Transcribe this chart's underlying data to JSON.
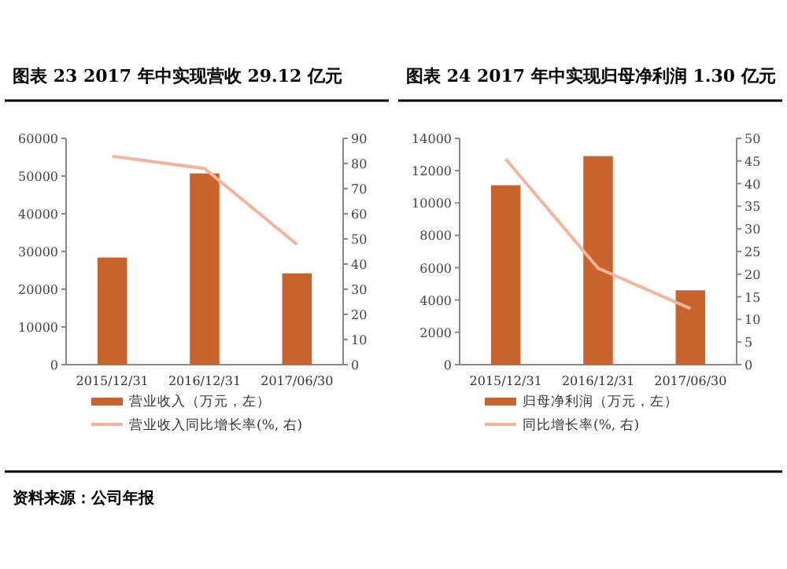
{
  "chart_data": [
    {
      "type": "bar",
      "title": "图表 23   2017 年中实现营收 29.12 亿元",
      "categories": [
        "2015/12/31",
        "2016/12/31",
        "2017/06/30"
      ],
      "series": [
        {
          "name": "营业收入（万元，左）",
          "color": "#c8642b",
          "values": [
            28400,
            50700,
            24200
          ]
        },
        {
          "name": "营业收入同比增长率(%, 右)",
          "type": "line",
          "axis": "y2",
          "color": "#f4b49c",
          "values": [
            82.9,
            78,
            47.8
          ]
        }
      ],
      "ylim": [
        0,
        60000
      ],
      "yticks": [
        0,
        10000,
        20000,
        30000,
        40000,
        50000,
        60000
      ],
      "y2lim": [
        0,
        90
      ],
      "y2ticks": [
        0,
        10,
        20,
        30,
        40,
        50,
        60,
        70,
        80,
        90
      ],
      "legend": "bottom",
      "annotations": [
        "资料来源：公司年报"
      ]
    },
    {
      "type": "bar",
      "title": "图表 24   2017 年中实现归母净利润 1.30 亿元",
      "categories": [
        "2015/12/31",
        "2016/12/31",
        "2017/06/30"
      ],
      "series": [
        {
          "name": "归母净利润（万元，左）",
          "color": "#c8642b",
          "values": [
            11100,
            12900,
            4600
          ]
        },
        {
          "name": "同比增长率(%, 右)",
          "type": "line",
          "axis": "y2",
          "color": "#f4b49c",
          "values": [
            45.4,
            21.3,
            12.4
          ]
        }
      ],
      "ylim": [
        0,
        14000
      ],
      "yticks": [
        0,
        2000,
        4000,
        6000,
        8000,
        10000,
        12000,
        14000
      ],
      "y2lim": [
        0,
        50
      ],
      "y2ticks": [
        0,
        5,
        10,
        15,
        20,
        25,
        30,
        35,
        40,
        45,
        50
      ],
      "legend": "bottom"
    }
  ]
}
